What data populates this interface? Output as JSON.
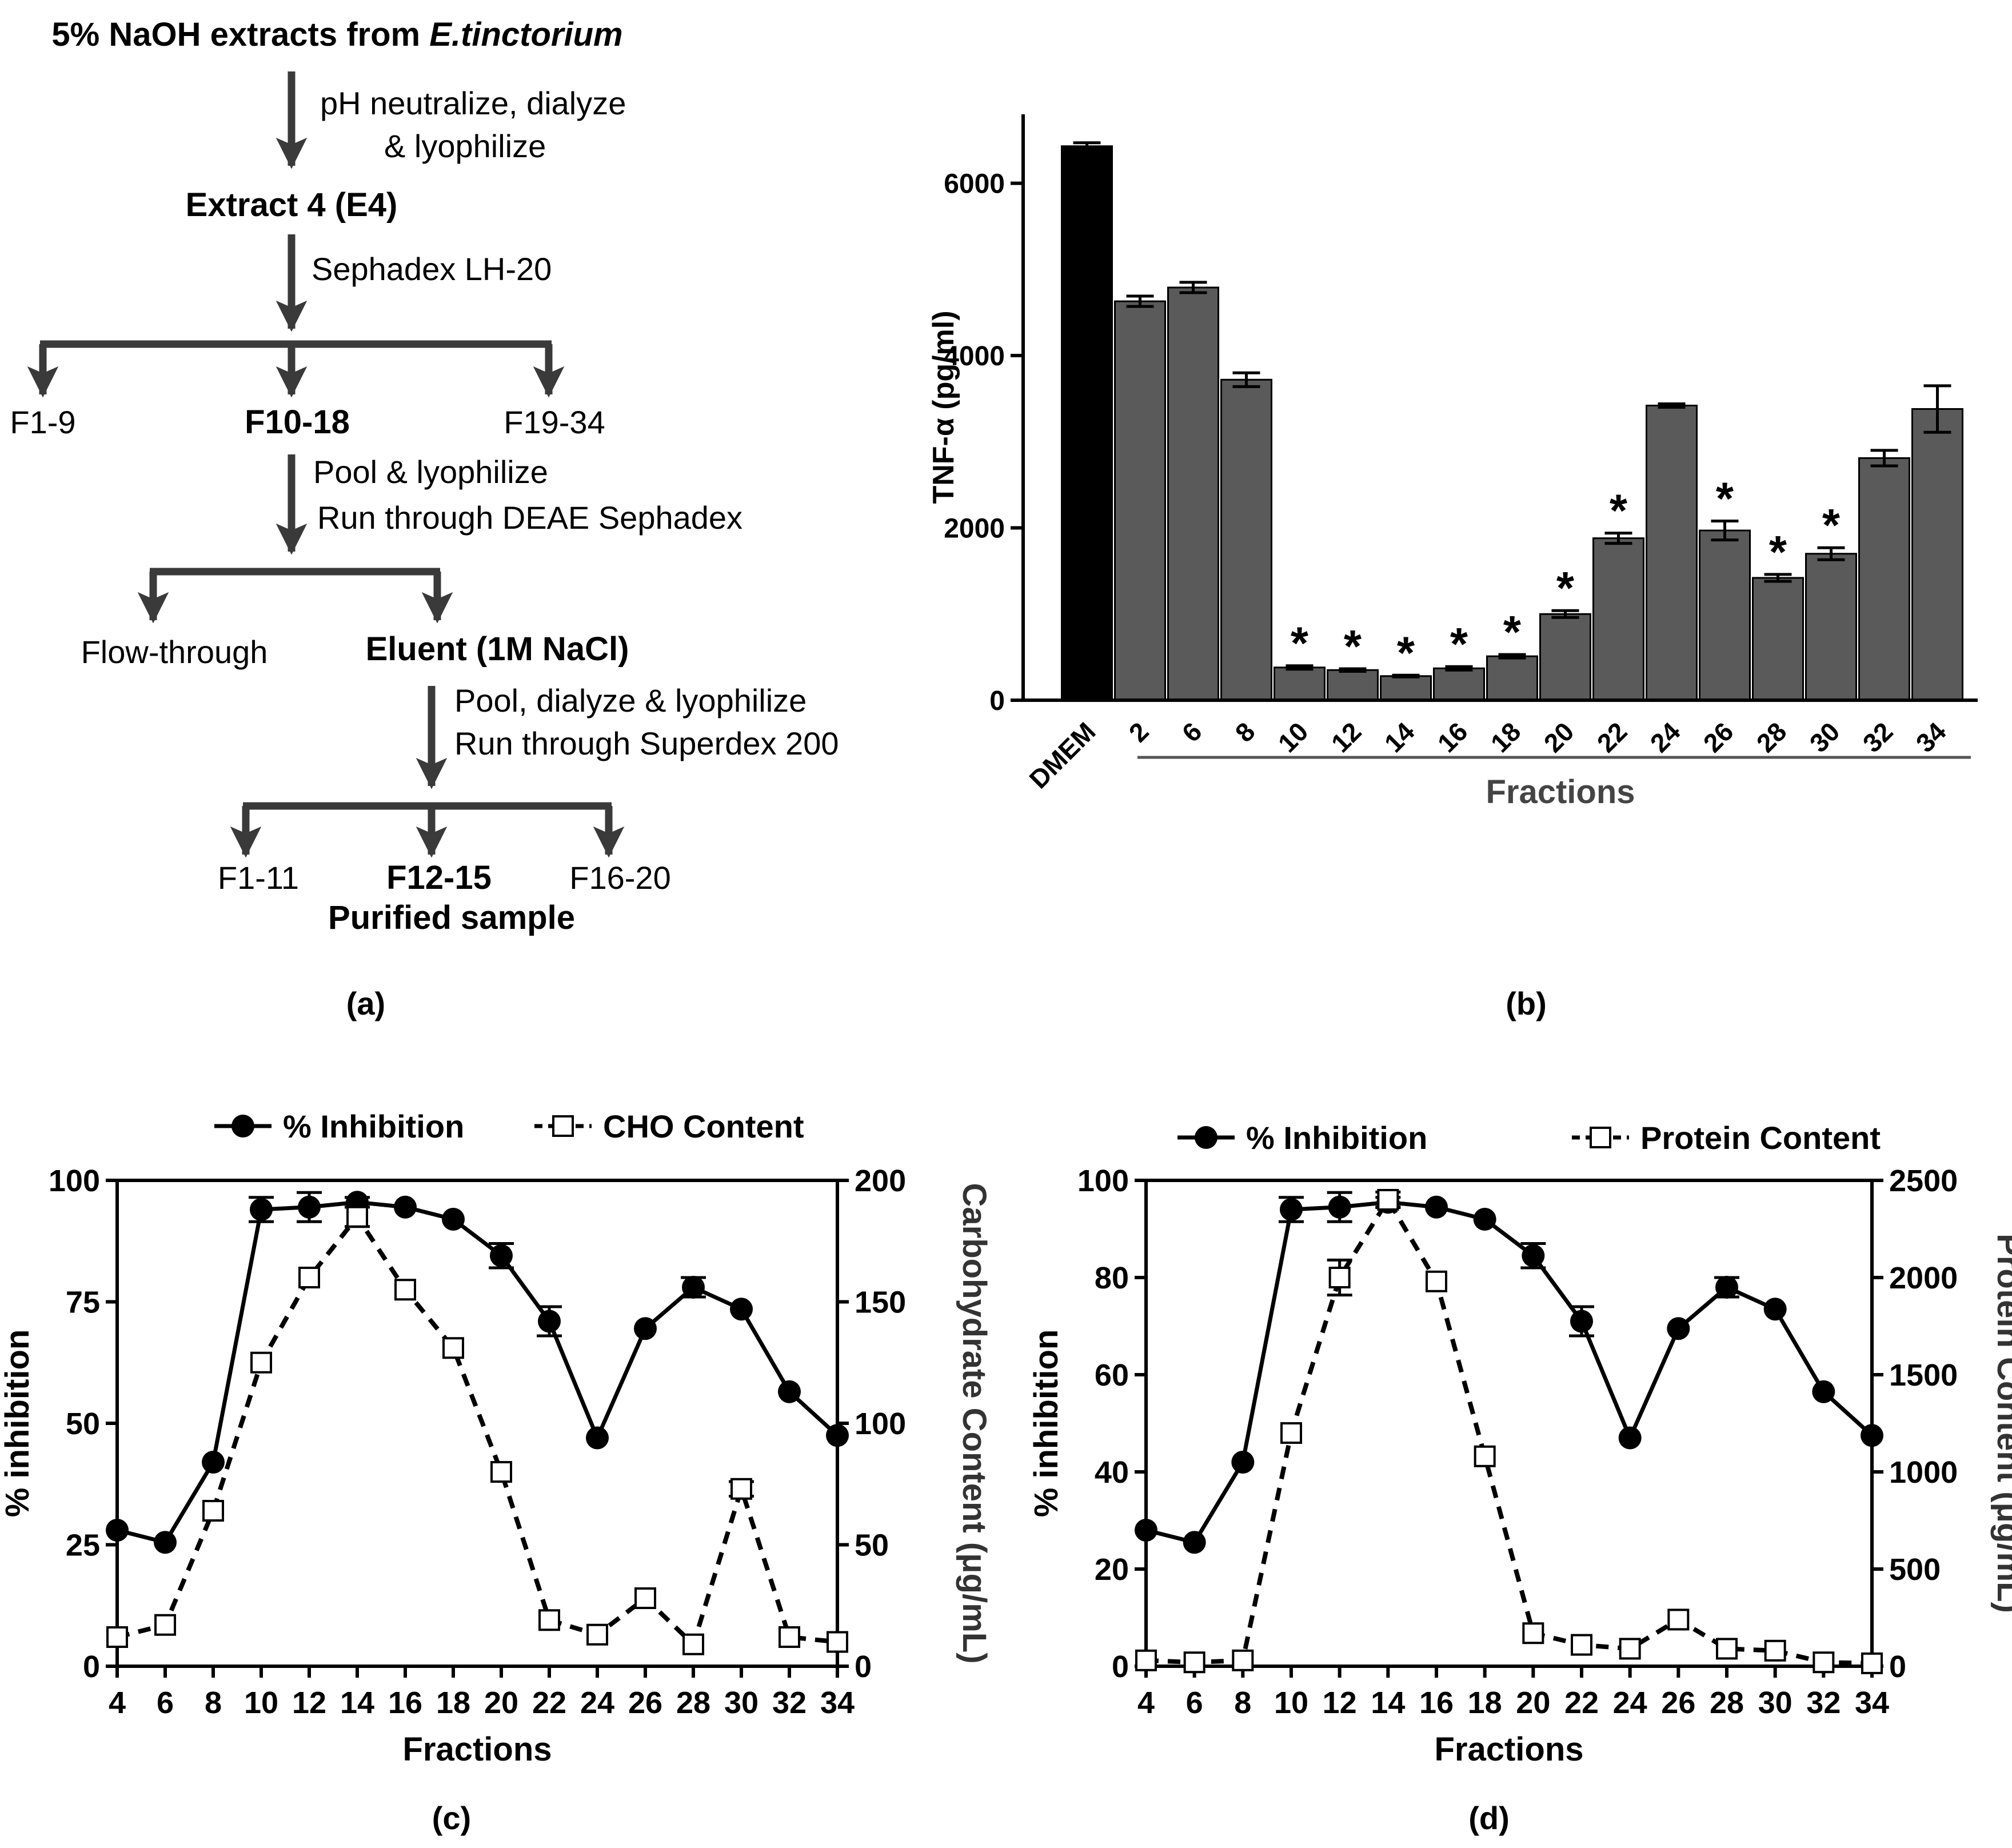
{
  "panel_labels": {
    "a": "(a)",
    "b": "(b)",
    "c": "(c)",
    "d": "(d)"
  },
  "flowchart": {
    "start_prefix": "5% NaOH extracts from ",
    "start_species": "E.tinctorium",
    "step1_line1": "pH neutralize, dialyze",
    "step1_line2": "& lyophilize",
    "e4": "Extract 4 (E4)",
    "step2": "Sephadex LH-20",
    "lh20_fractions": [
      "F1-9",
      "F10-18",
      "F19-34"
    ],
    "step3_line1": "Pool & lyophilize",
    "step3_line2": "Run through DEAE Sephadex",
    "flow_through": "Flow-through",
    "eluent": "Eluent (1M NaCl)",
    "step4_line1": "Pool, dialyze & lyophilize",
    "step4_line2": "Run through Superdex 200",
    "sdx_fractions": [
      "F1-11",
      "F12-15",
      "F16-20"
    ],
    "purified": "Purified sample"
  },
  "chart_data": [
    {
      "id": "b",
      "type": "bar",
      "ylabel": "TNF-α (pg/ml)",
      "xlabel": "Fractions",
      "ylim": [
        0,
        6800
      ],
      "yticks": [
        0,
        2000,
        4000,
        6000
      ],
      "control": {
        "label": "DMEM",
        "value": 6430,
        "error": 40,
        "color": "#000000"
      },
      "categories": [
        "2",
        "6",
        "8",
        "10",
        "12",
        "14",
        "16",
        "18",
        "20",
        "22",
        "24",
        "26",
        "28",
        "30",
        "32",
        "34"
      ],
      "values": [
        4630,
        4790,
        3720,
        380,
        350,
        280,
        370,
        510,
        1000,
        1880,
        3420,
        1970,
        1420,
        1700,
        2810,
        3380
      ],
      "errors": [
        60,
        60,
        80,
        20,
        15,
        10,
        20,
        20,
        40,
        60,
        20,
        110,
        40,
        70,
        90,
        270
      ],
      "significant": [
        false,
        false,
        false,
        true,
        true,
        true,
        true,
        true,
        true,
        true,
        false,
        true,
        true,
        true,
        false,
        false
      ],
      "significance_mark": "*",
      "bar_color": "#5a5a5a"
    },
    {
      "id": "c",
      "type": "line",
      "x": [
        4,
        6,
        8,
        10,
        12,
        14,
        16,
        18,
        20,
        22,
        24,
        26,
        28,
        30,
        32,
        34
      ],
      "xlabel": "Fractions",
      "ylabel_left": "% inhibition",
      "ylabel_right": "Carbohydrate Content (μg/mL)",
      "ylim_left": [
        0,
        100
      ],
      "yticks_left": [
        0,
        25,
        50,
        75,
        100
      ],
      "ylim_right": [
        0,
        200
      ],
      "yticks_right": [
        0,
        50,
        100,
        150,
        200
      ],
      "series": [
        {
          "name": "% Inhibition",
          "axis": "left",
          "style": "solid-filled-circle",
          "values": [
            28,
            25.5,
            42,
            94,
            94.5,
            95.5,
            94.5,
            92,
            84.5,
            71,
            47,
            69.5,
            78,
            73.5,
            56.5,
            47.5
          ],
          "errors": [
            0,
            0,
            0,
            2.5,
            3,
            1,
            0,
            0,
            2.5,
            3,
            0,
            0,
            2,
            0,
            0,
            0
          ]
        },
        {
          "name": "CHO Content",
          "axis": "right",
          "style": "dashed-open-square",
          "values": [
            12,
            17,
            64,
            125,
            160,
            185,
            155,
            131,
            80,
            19,
            13,
            28,
            9,
            73,
            12,
            10
          ],
          "errors": [
            0,
            0,
            0,
            0,
            0,
            4,
            0,
            0,
            0,
            0,
            0,
            0,
            0,
            3,
            0,
            0
          ]
        }
      ]
    },
    {
      "id": "d",
      "type": "line",
      "x": [
        4,
        6,
        8,
        10,
        12,
        14,
        16,
        18,
        20,
        22,
        24,
        26,
        28,
        30,
        32,
        34
      ],
      "xlabel": "Fractions",
      "ylabel_left": "% inhibition",
      "ylabel_right": "Protein Content (μg/mL)",
      "ylim_left": [
        0,
        100
      ],
      "yticks_left": [
        0,
        20,
        40,
        60,
        80,
        100
      ],
      "ylim_right": [
        0,
        2500
      ],
      "yticks_right": [
        0,
        500,
        1000,
        1500,
        2000,
        2500
      ],
      "series": [
        {
          "name": "% Inhibition",
          "axis": "left",
          "style": "solid-filled-circle",
          "values": [
            28,
            25.5,
            42,
            94,
            94.5,
            95.5,
            94.5,
            92,
            84.5,
            71,
            47,
            69.5,
            78,
            73.5,
            56.5,
            47.5
          ],
          "errors": [
            0,
            0,
            0,
            2.5,
            3,
            1,
            0,
            0,
            2.5,
            3,
            0,
            0,
            2,
            0,
            0,
            0
          ]
        },
        {
          "name": "Protein Content",
          "axis": "right",
          "style": "dashed-open-square",
          "values": [
            30,
            20,
            30,
            1200,
            2000,
            2400,
            1980,
            1080,
            170,
            110,
            90,
            240,
            90,
            80,
            20,
            15
          ],
          "errors": [
            0,
            0,
            0,
            0,
            90,
            40,
            0,
            0,
            0,
            0,
            0,
            0,
            0,
            0,
            0,
            0
          ]
        }
      ]
    }
  ]
}
